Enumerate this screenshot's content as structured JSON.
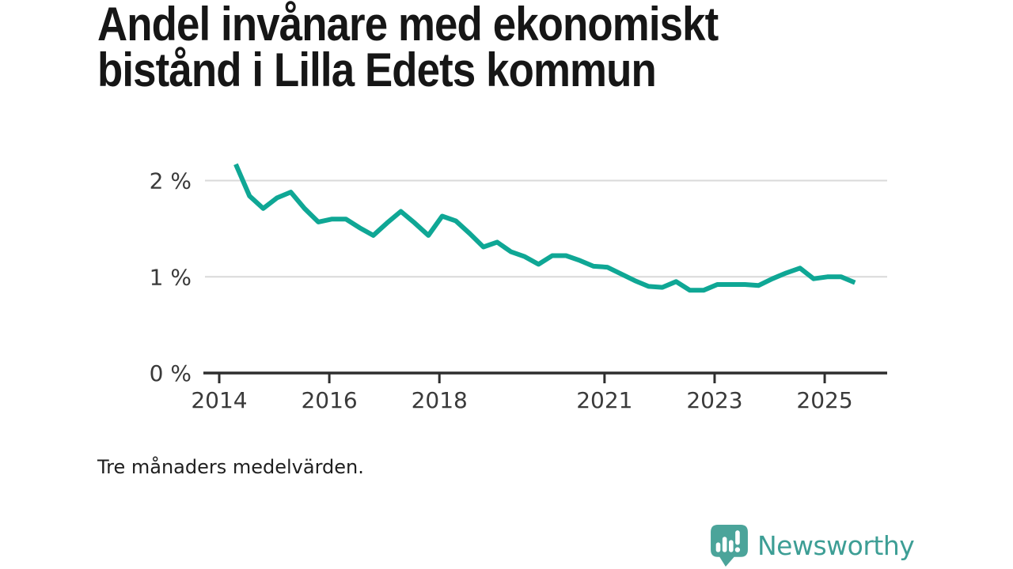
{
  "title": {
    "line1": "Andel invånare med ekonomiskt",
    "line2": "bistånd i Lilla Edets kommun"
  },
  "note": "Tre månaders medelvärden.",
  "branding": {
    "name": "Newsworthy",
    "icon": "bar-chart-speech-bubble-icon",
    "icon_color": "#4ba49a",
    "text_color": "#3d9e95"
  },
  "colors": {
    "line": "#0fa795",
    "gridline": "#d9d9d9",
    "axis": "#2e2e2e",
    "tick_label": "#3a3a3a",
    "title_text": "#161616"
  },
  "chart_data": {
    "type": "line",
    "title": "Andel invånare med ekonomiskt bistånd i Lilla Edets kommun",
    "subtitle": "Tre månaders medelvärden.",
    "unit": "%",
    "xlabel": "",
    "ylabel": "",
    "grid": "horizontal",
    "legend": "none",
    "xlim": [
      2013.74,
      2026.14
    ],
    "ylim": [
      0,
      2.2
    ],
    "x_ticks": [
      2014,
      2016,
      2018,
      2021,
      2023,
      2025
    ],
    "y_ticks": [
      {
        "value": 0,
        "label": "0 %"
      },
      {
        "value": 1,
        "label": "1 %"
      },
      {
        "value": 2,
        "label": "2 %"
      }
    ],
    "series": [
      {
        "name": "Andel invånare med ekonomiskt bistånd",
        "color": "#0fa795",
        "points": [
          [
            2014.3,
            2.17
          ],
          [
            2014.55,
            1.84
          ],
          [
            2014.8,
            1.71
          ],
          [
            2015.05,
            1.82
          ],
          [
            2015.3,
            1.88
          ],
          [
            2015.55,
            1.71
          ],
          [
            2015.8,
            1.57
          ],
          [
            2016.05,
            1.6
          ],
          [
            2016.3,
            1.6
          ],
          [
            2016.55,
            1.51
          ],
          [
            2016.8,
            1.43
          ],
          [
            2017.05,
            1.56
          ],
          [
            2017.3,
            1.68
          ],
          [
            2017.55,
            1.56
          ],
          [
            2017.8,
            1.43
          ],
          [
            2018.05,
            1.63
          ],
          [
            2018.3,
            1.58
          ],
          [
            2018.55,
            1.45
          ],
          [
            2018.8,
            1.31
          ],
          [
            2019.05,
            1.36
          ],
          [
            2019.3,
            1.26
          ],
          [
            2019.55,
            1.21
          ],
          [
            2019.8,
            1.13
          ],
          [
            2020.05,
            1.22
          ],
          [
            2020.3,
            1.22
          ],
          [
            2020.55,
            1.17
          ],
          [
            2020.8,
            1.11
          ],
          [
            2021.05,
            1.1
          ],
          [
            2021.3,
            1.03
          ],
          [
            2021.55,
            0.96
          ],
          [
            2021.8,
            0.9
          ],
          [
            2022.05,
            0.89
          ],
          [
            2022.3,
            0.95
          ],
          [
            2022.55,
            0.86
          ],
          [
            2022.8,
            0.86
          ],
          [
            2023.05,
            0.92
          ],
          [
            2023.3,
            0.92
          ],
          [
            2023.55,
            0.92
          ],
          [
            2023.8,
            0.91
          ],
          [
            2024.05,
            0.98
          ],
          [
            2024.3,
            1.04
          ],
          [
            2024.55,
            1.09
          ],
          [
            2024.8,
            0.98
          ],
          [
            2025.05,
            1.0
          ],
          [
            2025.3,
            1.0
          ],
          [
            2025.55,
            0.94
          ]
        ]
      }
    ]
  }
}
